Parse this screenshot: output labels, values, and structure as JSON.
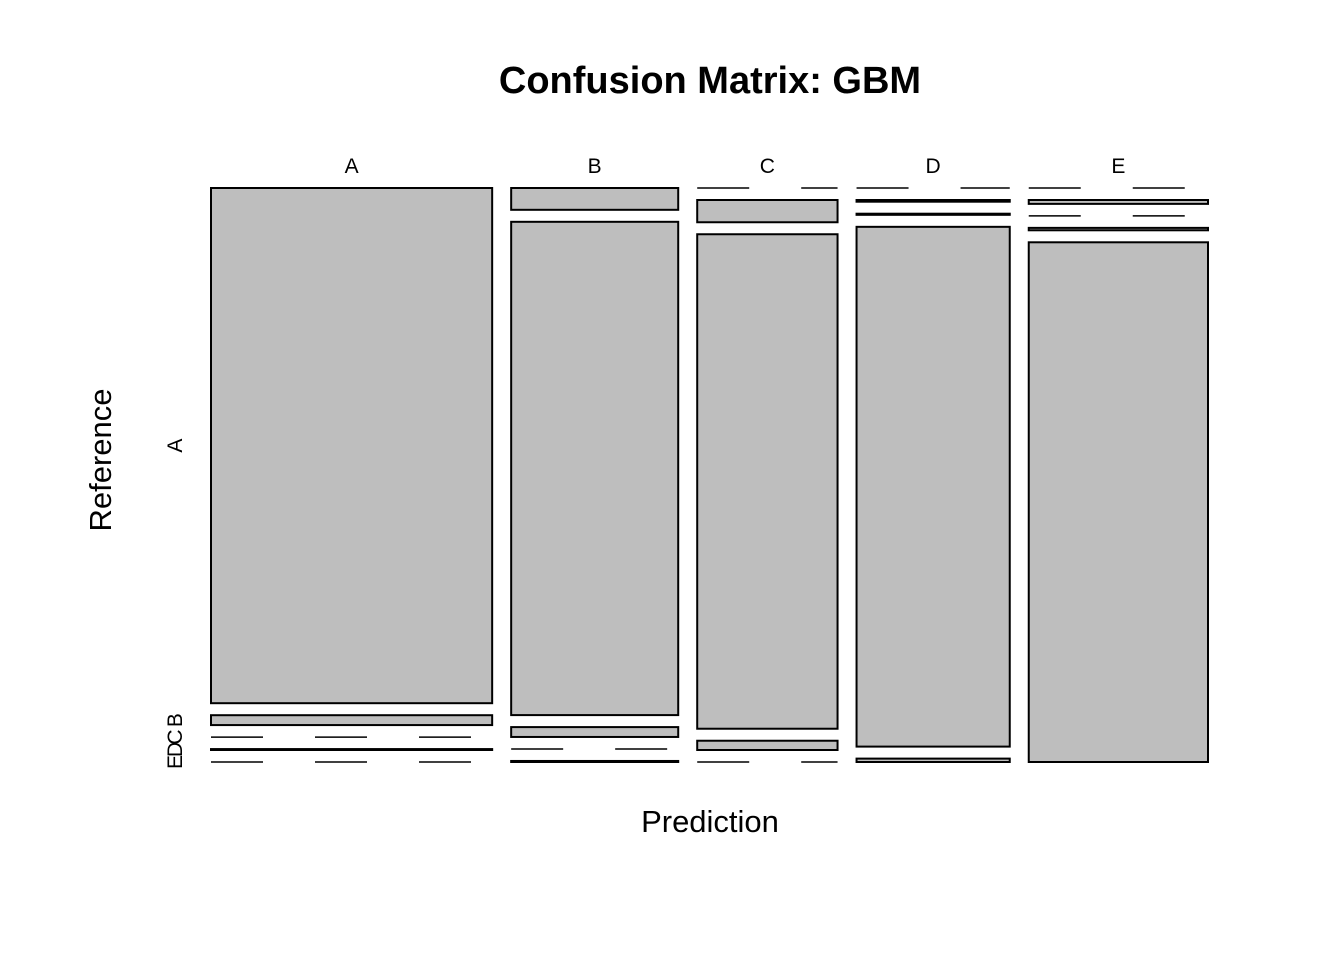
{
  "chart_data": {
    "type": "mosaic",
    "title": "Confusion Matrix: GBM",
    "xlabel": "Prediction",
    "ylabel": "Reference",
    "categories": [
      "A",
      "B",
      "C",
      "D",
      "E"
    ],
    "reference_levels": [
      "A",
      "B",
      "C",
      "D",
      "E"
    ],
    "column_totals": [
      1705,
      1013,
      851,
      929,
      1087
    ],
    "matrix": {
      "A": {
        "A": 1670,
        "B": 32,
        "C": 0,
        "D": 3,
        "E": 0
      },
      "B": {
        "A": 42,
        "B": 950,
        "C": 19,
        "D": 0,
        "E": 2
      },
      "C": {
        "A": 0,
        "B": 36,
        "C": 800,
        "D": 15,
        "E": 0
      },
      "D": {
        "A": 0,
        "B": 3,
        "C": 2,
        "D": 918,
        "E": 6
      },
      "E": {
        "A": 0,
        "B": 8,
        "C": 0,
        "D": 5,
        "E": 1074
      }
    },
    "fill_color": "#bebebe",
    "stroke_color": "#000000",
    "grid": false
  }
}
